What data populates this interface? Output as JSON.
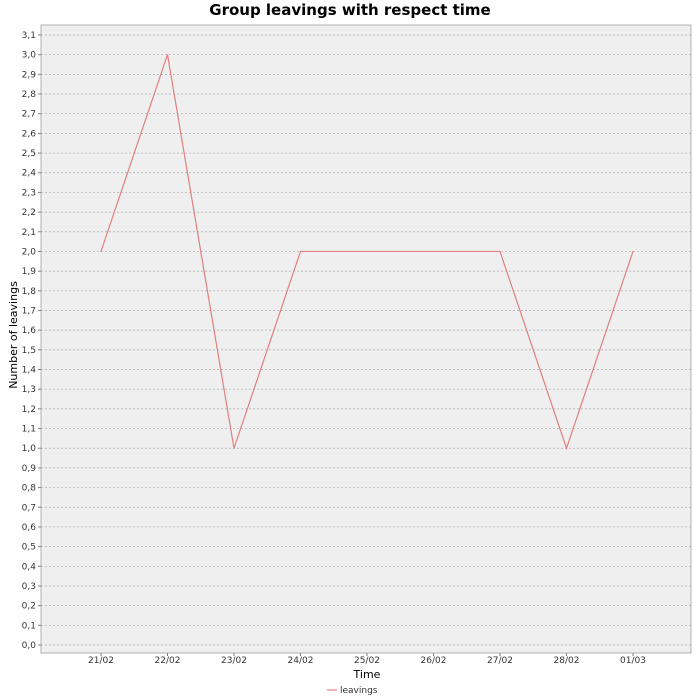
{
  "chart_data": {
    "type": "line",
    "title": "Group leavings with respect time",
    "xlabel": "Time",
    "ylabel": "Number of leavings",
    "categories": [
      "21/02",
      "22/02",
      "23/02",
      "24/02",
      "25/02",
      "26/02",
      "27/02",
      "28/02",
      "01/03"
    ],
    "series": [
      {
        "name": "leavings",
        "color": "#e08080",
        "points": [
          {
            "x": "21/02",
            "y": 2.0
          },
          {
            "x": "22/02",
            "y": 3.0
          },
          {
            "x": "23/02",
            "y": 1.0
          },
          {
            "x": "24/02",
            "y": 2.0
          },
          {
            "x": "27/02",
            "y": 2.0
          },
          {
            "x": "28/02",
            "y": 1.0
          },
          {
            "x": "01/03",
            "y": 2.0
          }
        ]
      }
    ],
    "ylim": [
      0.0,
      3.1
    ],
    "ytick_step": 0.1,
    "ytick_decimal_separator": ",",
    "grid": true,
    "plot_background": "#efefef",
    "grid_color": "#a9a9a9",
    "legend_position": "bottom-center"
  }
}
